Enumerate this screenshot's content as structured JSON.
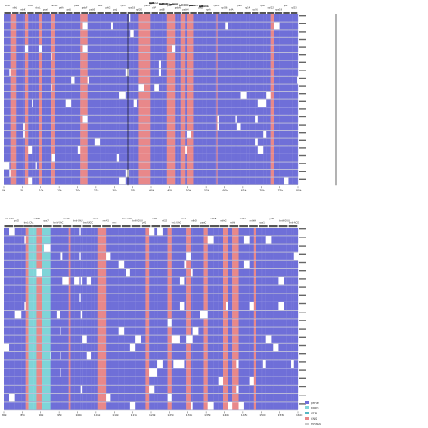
{
  "alignment": {
    "top_panel": {
      "genes": [
        "ndhC",
        "ndhJ",
        "ndhK",
        "ndhH",
        "rbcL",
        "psaI",
        "cemA",
        "petA",
        "psbJ",
        "psbL",
        "psbF",
        "psbE",
        "petL",
        "petG",
        "psaJ",
        "rpl33",
        "rps18",
        "rpl20",
        "rps12",
        "clpP",
        "psbB",
        "psbT",
        "psbN",
        "psbH",
        "petB",
        "petD",
        "rpoA",
        "rps11",
        "rpl36",
        "infA",
        "rps8",
        "rpl14",
        "rpl16",
        "rps3",
        "rpl22",
        "rps19",
        "rpl2",
        "rpl23"
      ],
      "regions": [
        "trnS-GGA",
        "trnfM-CAU",
        "trnG-UCC",
        "trnT-GGU",
        "psbZ",
        "psbC",
        "psbD",
        "trnE-UUC",
        "trnY-GUA",
        "trnD-GUC",
        "psbM",
        "petN",
        "rpoB",
        "rpoC1",
        "rpoC2",
        "rps2",
        "atpI",
        "atpH",
        "atpF",
        "atpA",
        "trnR-UCU",
        "trnG-GCC",
        "trnS-GCU",
        "trnQ-UUG",
        "rps16",
        "trnK-UUU",
        "matK",
        "psbK",
        "psbI",
        "trnH-GUG"
      ],
      "scale": [
        "0k",
        "5k",
        "10k",
        "15k",
        "20k",
        "25k",
        "30k",
        "35k",
        "40k",
        "45k",
        "50k",
        "55k",
        "60k",
        "65k",
        "70k",
        "75k",
        "80k"
      ]
    },
    "bottom_panel": {
      "genes": [
        "trnI-CAU",
        "ycf2",
        "trnL-CAA",
        "ndhB",
        "rps7",
        "trnV-GAC",
        "rrn16",
        "trnI-GAU",
        "trnA-UGC",
        "rrn23",
        "rrn4.5",
        "rrn5",
        "trnR-ACG",
        "trnN-GUU",
        "ycf1",
        "ndhF",
        "rpl32",
        "trnL-UAG",
        "ccsA",
        "ndhD",
        "psaC",
        "ndhE",
        "ndhG",
        "ndhI",
        "ndhA",
        "ndhH",
        "rps15",
        "ycf1",
        "trnN-GUU",
        "trnR-ACG"
      ],
      "scale": [
        "80k",
        "85k",
        "90k",
        "95k",
        "100k",
        "105k",
        "110k",
        "115k",
        "120k",
        "125k",
        "130k",
        "135k",
        "140k",
        "145k",
        "150k",
        "155k",
        "160k"
      ]
    },
    "legend": [
      {
        "label": "gene",
        "color": "#6f6fd8"
      },
      {
        "label": "exon",
        "color": "#7fd4d8"
      },
      {
        "label": "UTR",
        "color": "#54b7c4"
      },
      {
        "label": "CNS",
        "color": "#e8888a"
      },
      {
        "label": "mRNA",
        "color": "#c9c9c9"
      }
    ],
    "colors": {
      "gene": "#6f6fd8",
      "cns": "#e8888a",
      "exon": "#7fd4d8",
      "gap": "#ffffff",
      "row_line": "#3a3a8a"
    }
  }
}
